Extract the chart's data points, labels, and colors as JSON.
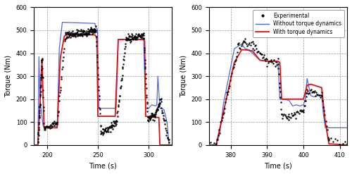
{
  "left_xlim": [
    187,
    323
  ],
  "right_xlim": [
    374,
    412
  ],
  "ylim": [
    0,
    600
  ],
  "yticks": [
    0,
    100,
    200,
    300,
    400,
    500,
    600
  ],
  "left_xticks": [
    200,
    250,
    300
  ],
  "right_xticks": [
    380,
    390,
    400,
    410
  ],
  "xlabel": "Time (s)",
  "ylabel": "Torque (Nm)",
  "exp_color": "#000000",
  "without_color": "#5566dd",
  "with_color": "#dd1111",
  "legend_labels": [
    "Experimental",
    "Without torque dynamics",
    "With torque dynamics"
  ],
  "background_color": "#ffffff",
  "grid_color": "#999999",
  "grid_style": "--",
  "figsize": [
    5.0,
    2.47
  ],
  "dpi": 100
}
